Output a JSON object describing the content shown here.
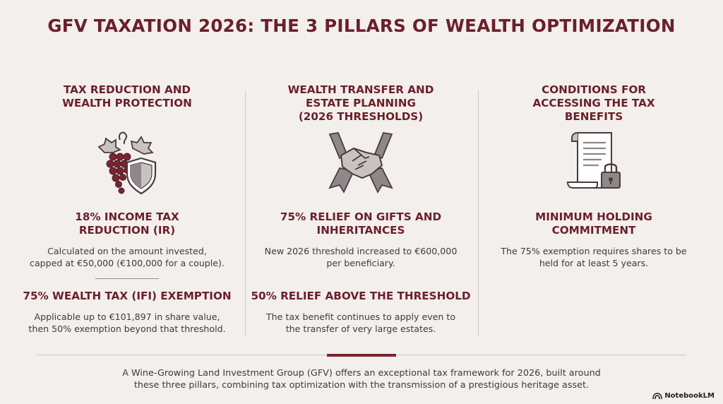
{
  "title": "GFV TAXATION 2026: THE 3 PILLARS OF WEALTH OPTIMIZATION",
  "pillars": [
    {
      "heading": [
        "TAX REDUCTION AND",
        "WEALTH PROTECTION"
      ],
      "icon": "grapes-shield-icon",
      "items": [
        {
          "title": [
            "18% INCOME TAX",
            "REDUCTION (IR)"
          ],
          "text": [
            "Calculated on the amount invested,",
            "capped at €50,000 (€100,000 for a couple)."
          ]
        },
        {
          "title": [
            "75% WEALTH TAX (IFI) EXEMPTION"
          ],
          "text": [
            "Applicable up to €101,897 in share value,",
            "then 50% exemption beyond that threshold."
          ]
        }
      ]
    },
    {
      "heading": [
        "WEALTH TRANSFER AND",
        "ESTATE PLANNING",
        "(2026 THRESHOLDS)"
      ],
      "icon": "handshake-icon",
      "items": [
        {
          "title": [
            "75% RELIEF ON GIFTS AND",
            "INHERITANCES"
          ],
          "text": [
            "New 2026 threshold increased to €600,000",
            "per beneficiary."
          ]
        },
        {
          "title": [
            "50% RELIEF ABOVE THE THRESHOLD"
          ],
          "text": [
            "The tax benefit continues to apply even to",
            "the transfer of very large estates."
          ]
        }
      ]
    },
    {
      "heading": [
        "CONDITIONS FOR",
        "ACCESSING THE TAX",
        "BENEFITS"
      ],
      "icon": "document-lock-icon",
      "items": [
        {
          "title": [
            "MINIMUM HOLDING",
            "COMMITMENT"
          ],
          "text": [
            "The 75% exemption requires shares to be",
            "held for at least 5 years."
          ]
        }
      ]
    }
  ],
  "footer": [
    "A Wine-Growing Land Investment Group (GFV) offers an exceptional tax framework for 2026, built around",
    "these three pillars, combining tax optimization with the transmission of a prestigious heritage asset."
  ],
  "badge": "NotebookLM",
  "colors": {
    "accent": "#6b1f2a",
    "background": "#f2efec",
    "text": "#3f3a3a"
  }
}
